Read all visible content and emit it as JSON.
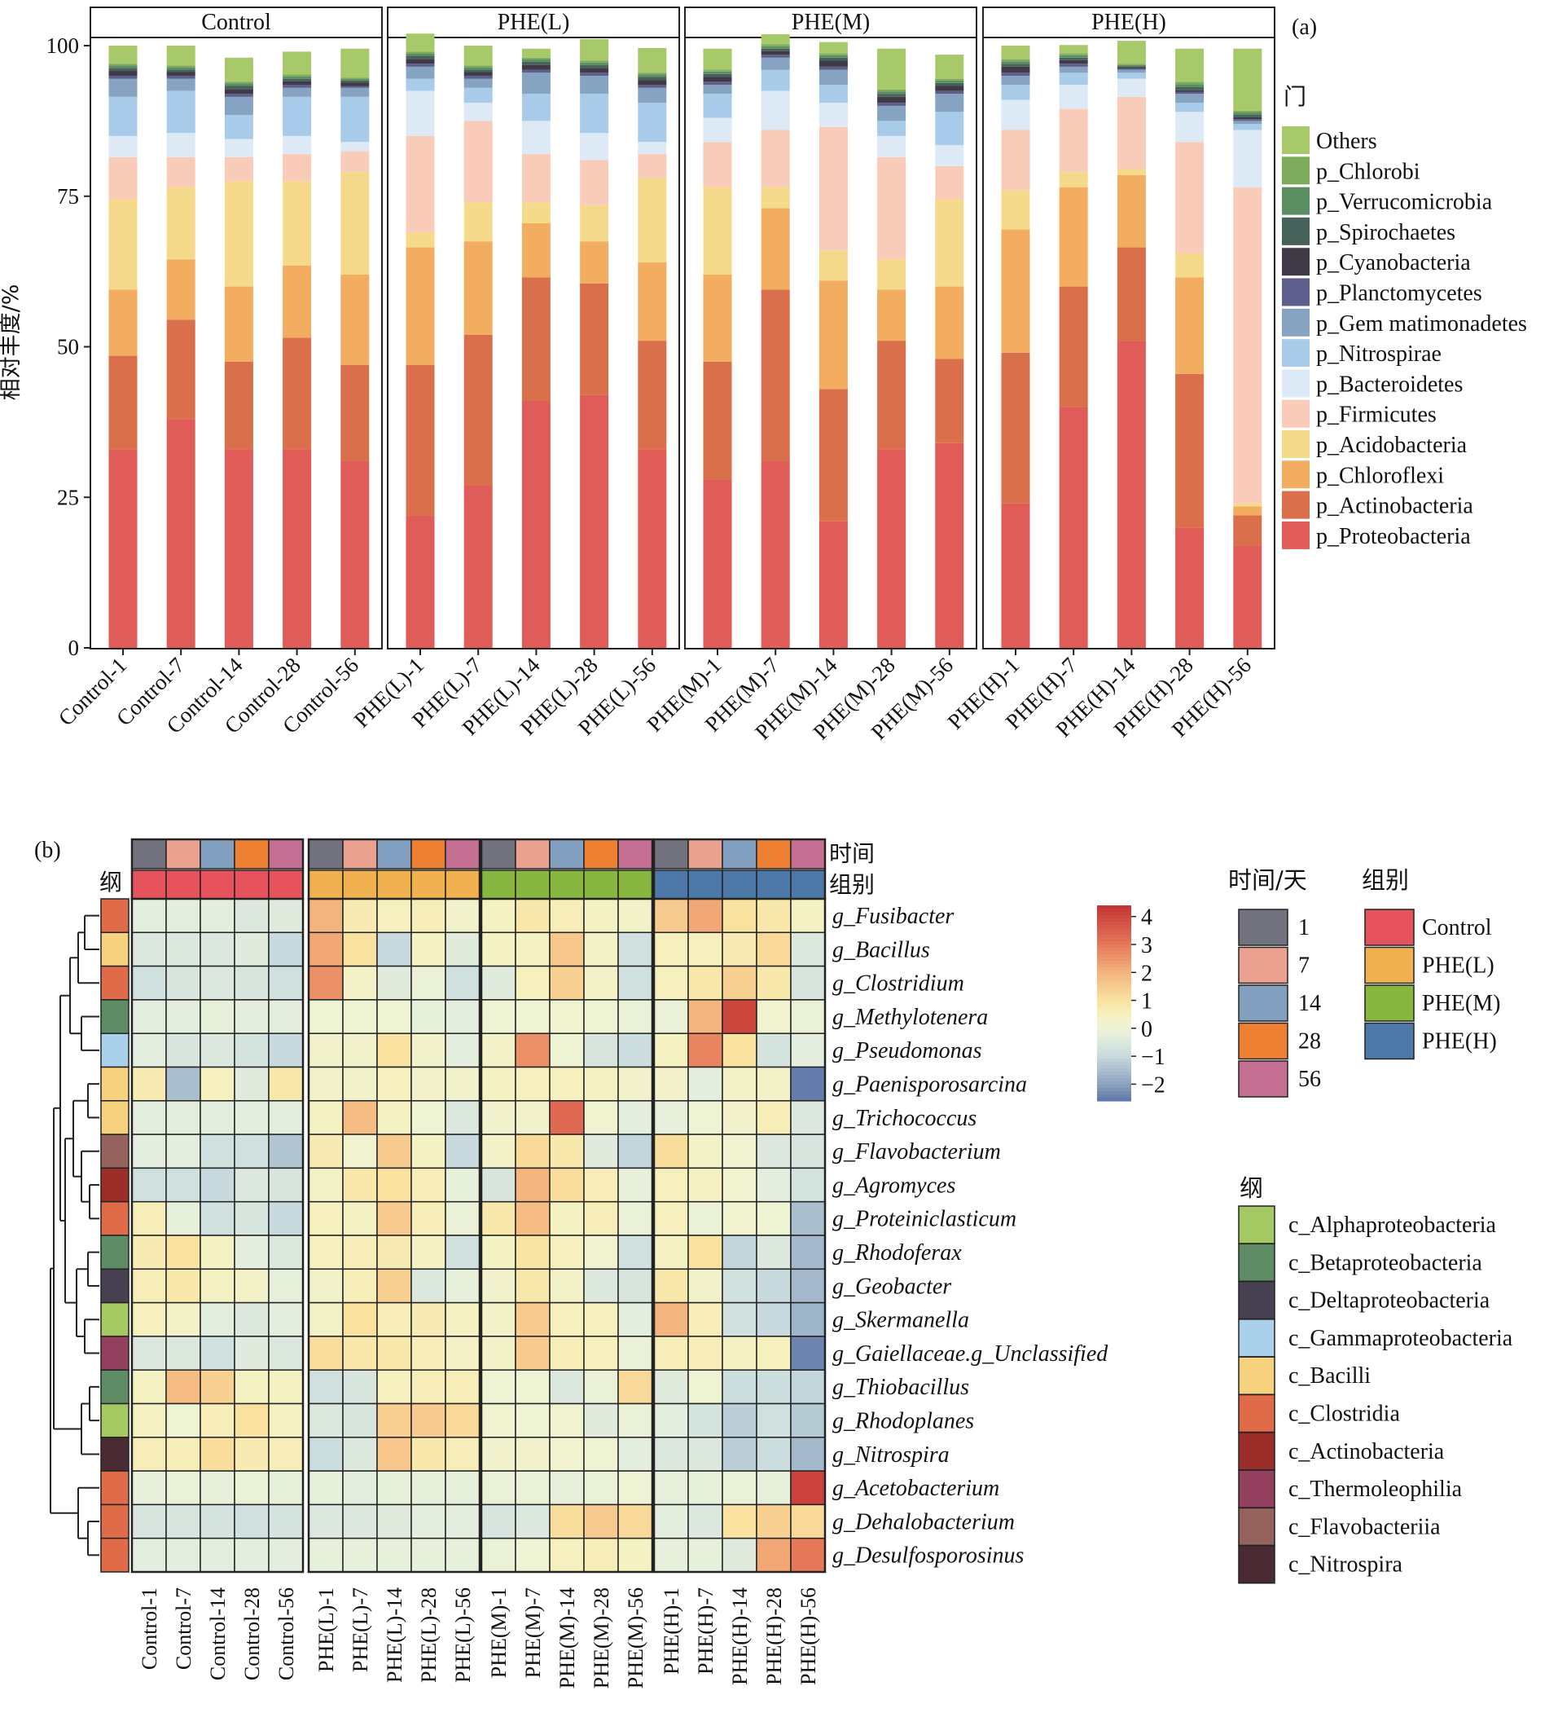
{
  "colors": {
    "phylum": {
      "Others": "#a8c969",
      "p_Chlorobi": "#7cab5b",
      "p_Verrucomicrobia": "#5b8f63",
      "p_Spirochaetes": "#46625a",
      "p_Cyanobacteria": "#403a46",
      "p_Planctomycetes": "#5d5e8b",
      "p_Gem matimonadetes": "#86a3c2",
      "p_Nitrospirae": "#a7cbe8",
      "p_Bacteroidetes": "#ddeaf6",
      "p_Firmicutes": "#f9ccb9",
      "p_Acidobacteria": "#f6da8b",
      "p_Chloroflexi": "#f3ad60",
      "p_Actinobacteria": "#da704b",
      "p_Proteobacteria": "#e05c58"
    },
    "time": {
      "1": "#72727e",
      "7": "#eba190",
      "14": "#829fbf",
      "28": "#ee8033",
      "56": "#c57093"
    },
    "group": {
      "Control": "#e6535c",
      "PHE(L)": "#f2b150",
      "PHE(M)": "#88b741",
      "PHE(H)": "#4e78a8"
    },
    "class": {
      "c_Alphaproteobacteria": "#a4c963",
      "c_Betaproteobacteria": "#5e8c65",
      "c_Deltaproteobacteria": "#474050",
      "c_Gammaproteobacteria": "#aad1ec",
      "c_Bacilli": "#f6d17e",
      "c_Clostridia": "#df6b49",
      "c_Actinobacteria": "#9c2e2a",
      "c_Thermoleophilia": "#93405e",
      "c_Flavobacteriia": "#96625e",
      "c_Nitrospira": "#4a2b33"
    }
  },
  "chart_data": [
    {
      "type": "bar",
      "panel_label": "(a)",
      "ylabel": "相对丰度/%",
      "ylim": [
        0,
        100
      ],
      "yticks": [
        "0",
        "25",
        "50",
        "75",
        "100"
      ],
      "facets": [
        "Control",
        "PHE(L)",
        "PHE(M)",
        "PHE(H)"
      ],
      "categories": [
        "Control-1",
        "Control-7",
        "Control-14",
        "Control-28",
        "Control-56",
        "PHE(L)-1",
        "PHE(L)-7",
        "PHE(L)-14",
        "PHE(L)-28",
        "PHE(L)-56",
        "PHE(M)-1",
        "PHE(M)-7",
        "PHE(M)-14",
        "PHE(M)-28",
        "PHE(M)-56",
        "PHE(H)-1",
        "PHE(H)-7",
        "PHE(H)-14",
        "PHE(H)-28",
        "PHE(H)-56"
      ],
      "legend_title": "门",
      "legend": [
        "Others",
        "p_Chlorobi",
        "p_Verrucomicrobia",
        "p_Spirochaetes",
        "p_Cyanobacteria",
        "p_Planctomycetes",
        "p_Gem matimonadetes",
        "p_Nitrospirae",
        "p_Bacteroidetes",
        "p_Firmicutes",
        "p_Acidobacteria",
        "p_Chloroflexi",
        "p_Actinobacteria",
        "p_Proteobacteria"
      ],
      "series": [
        {
          "name": "p_Proteobacteria",
          "values": [
            33,
            38,
            33,
            33,
            31,
            22,
            27,
            41,
            42,
            33,
            28,
            31,
            21,
            33,
            34,
            24,
            40,
            51,
            20,
            17
          ]
        },
        {
          "name": "p_Actinobacteria",
          "values": [
            15.5,
            16.5,
            14.5,
            18.5,
            16,
            25,
            25,
            20.5,
            18.5,
            18,
            19.5,
            28.5,
            22,
            18,
            14,
            25,
            20,
            15.5,
            25.5,
            5
          ]
        },
        {
          "name": "p_Chloroflexi",
          "values": [
            11,
            10,
            12.5,
            12,
            15,
            19.5,
            15.5,
            9,
            7,
            13,
            14.5,
            13.5,
            18,
            8.5,
            12,
            20.5,
            16.5,
            12,
            16,
            1.5
          ]
        },
        {
          "name": "p_Acidobacteria",
          "values": [
            15,
            12,
            17.5,
            14,
            17,
            2.5,
            6.5,
            3.5,
            6,
            14,
            14.5,
            3.5,
            5,
            5,
            14.5,
            6.5,
            2.5,
            1,
            4,
            0.5
          ]
        },
        {
          "name": "p_Firmicutes",
          "values": [
            7,
            5,
            4,
            4.5,
            3.5,
            16,
            13.5,
            8,
            7.5,
            4,
            7.5,
            9.5,
            20.5,
            17,
            5.5,
            10,
            10.5,
            12,
            18.5,
            52.5
          ]
        },
        {
          "name": "p_Bacteroidetes",
          "values": [
            3.5,
            4,
            3,
            3,
            1.5,
            7.5,
            3,
            5.5,
            4.5,
            2,
            4,
            6.5,
            4,
            3.5,
            3.5,
            5,
            4,
            3,
            5,
            9.5
          ]
        },
        {
          "name": "p_Nitrospirae",
          "values": [
            6.5,
            7,
            4,
            6.5,
            7.5,
            2,
            2.5,
            4.5,
            6.5,
            6.5,
            4,
            3.5,
            3,
            2.5,
            5.5,
            2.5,
            2,
            1,
            1.5,
            1
          ]
        },
        {
          "name": "p_Gem matimonadetes",
          "values": [
            3,
            2,
            3,
            1.5,
            1.5,
            2,
            1.5,
            3.5,
            3,
            2.5,
            1.5,
            2,
            2.5,
            2.5,
            3,
            1.5,
            1,
            0.5,
            1.5,
            0.5
          ]
        },
        {
          "name": "p_Planctomycetes",
          "values": [
            0.5,
            0.5,
            0.5,
            0.5,
            0.3,
            0.5,
            0.5,
            0.5,
            0.5,
            0.5,
            0.5,
            0.5,
            0.5,
            0.5,
            0.5,
            0.5,
            0.5,
            0.2,
            0.3,
            0.3
          ]
        },
        {
          "name": "p_Cyanobacteria",
          "values": [
            0.8,
            0.6,
            0.8,
            0.6,
            0.6,
            0.8,
            0.6,
            0.8,
            0.8,
            0.8,
            0.8,
            0.6,
            1,
            1,
            0.8,
            1,
            0.6,
            0.2,
            0.3,
            0.3
          ]
        },
        {
          "name": "p_Spirochaetes",
          "values": [
            0.5,
            0.4,
            0.5,
            0.4,
            0.3,
            0.5,
            0.4,
            0.5,
            0.5,
            0.5,
            0.5,
            0.4,
            0.5,
            0.5,
            0.5,
            0.5,
            0.4,
            0.2,
            0.5,
            0.4
          ]
        },
        {
          "name": "p_Verrucomicrobia",
          "values": [
            0.4,
            0.4,
            0.4,
            0.4,
            0.3,
            0.4,
            0.4,
            0.4,
            0.4,
            0.4,
            0.4,
            0.4,
            0.4,
            0.4,
            0.4,
            0.4,
            0.4,
            0.2,
            0.5,
            0.4
          ]
        },
        {
          "name": "p_Chlorobi",
          "values": [
            0.3,
            0.3,
            0.3,
            0.3,
            0.2,
            0.3,
            0.3,
            0.3,
            0.3,
            0.3,
            0.3,
            0.3,
            0.3,
            0.3,
            0.3,
            0.3,
            0.3,
            0.2,
            0.4,
            0.3
          ]
        },
        {
          "name": "Others",
          "values": [
            3,
            3.3,
            4,
            3.8,
            4.8,
            3,
            3.3,
            1.5,
            3.6,
            4.1,
            3.5,
            1.7,
            1.9,
            6.8,
            4,
            2.3,
            1.4,
            3.8,
            5.5,
            10.3
          ]
        }
      ]
    },
    {
      "type": "heatmap",
      "panel_label": "(b)",
      "columns": [
        "Control-1",
        "Control-7",
        "Control-14",
        "Control-28",
        "Control-56",
        "PHE(L)-1",
        "PHE(L)-7",
        "PHE(L)-14",
        "PHE(L)-28",
        "PHE(L)-56",
        "PHE(M)-1",
        "PHE(M)-7",
        "PHE(M)-14",
        "PHE(M)-28",
        "PHE(M)-56",
        "PHE(H)-1",
        "PHE(H)-7",
        "PHE(H)-14",
        "PHE(H)-28",
        "PHE(H)-56"
      ],
      "rows": [
        "g_Fusibacter",
        "g_Bacillus",
        "g_Clostridium",
        "g_Methylotenera",
        "g_Pseudomonas",
        "g_Paenisporosarcina",
        "g_Trichococcus",
        "g_Flavobacterium",
        "g_Agromyces",
        "g_Proteiniclasticum",
        "g_Rhodoferax",
        "g_Geobacter",
        "g_Skermanella",
        "g_Gaiellaceae.g_Unclassified",
        "g_Thiobacillus",
        "g_Rhodoplanes",
        "g_Nitrospira",
        "g_Acetobacterium",
        "g_Dehalobacterium",
        "g_Desulfosporosinus"
      ],
      "row_class": [
        "c_Clostridia",
        "c_Bacilli",
        "c_Clostridia",
        "c_Betaproteobacteria",
        "c_Gammaproteobacteria",
        "c_Bacilli",
        "c_Bacilli",
        "c_Flavobacteriia",
        "c_Actinobacteria",
        "c_Clostridia",
        "c_Betaproteobacteria",
        "c_Deltaproteobacteria",
        "c_Alphaproteobacteria",
        "c_Thermoleophilia",
        "c_Betaproteobacteria",
        "c_Alphaproteobacteria",
        "c_Nitrospira",
        "c_Clostridia",
        "c_Clostridia",
        "c_Clostridia"
      ],
      "time_row": [
        "1",
        "7",
        "14",
        "28",
        "56",
        "1",
        "7",
        "14",
        "28",
        "56",
        "1",
        "7",
        "14",
        "28",
        "56",
        "1",
        "7",
        "14",
        "28",
        "56"
      ],
      "group_row": [
        "Control",
        "Control",
        "Control",
        "Control",
        "Control",
        "PHE(L)",
        "PHE(L)",
        "PHE(L)",
        "PHE(L)",
        "PHE(L)",
        "PHE(M)",
        "PHE(M)",
        "PHE(M)",
        "PHE(M)",
        "PHE(M)",
        "PHE(H)",
        "PHE(H)",
        "PHE(H)",
        "PHE(H)",
        "PHE(H)"
      ],
      "values": [
        [
          -0.3,
          -0.3,
          -0.3,
          -0.5,
          -0.4,
          2,
          0.7,
          0.5,
          0.6,
          0.2,
          0.4,
          0.8,
          0.6,
          0.4,
          0.3,
          1.5,
          2.2,
          1,
          0.8,
          0.4
        ],
        [
          -0.5,
          -0.5,
          -0.5,
          -0.4,
          -1,
          2.2,
          1,
          -1,
          0.4,
          -0.4,
          0.4,
          0.4,
          1.6,
          0.3,
          -0.8,
          0.5,
          0.5,
          0.7,
          1.2,
          -0.5
        ],
        [
          -0.8,
          -0.6,
          -0.5,
          -0.6,
          -0.8,
          2.6,
          0.3,
          -0.4,
          -0.1,
          -0.8,
          -0.4,
          0.5,
          1.4,
          0.3,
          -0.8,
          0.5,
          0.8,
          1.4,
          0.8,
          -0.6
        ],
        [
          -0.3,
          -0.3,
          -0.2,
          -0.3,
          -0.3,
          0,
          0,
          0,
          -0.2,
          -0.3,
          0,
          0,
          0.1,
          0,
          -0.1,
          -0.1,
          2,
          4,
          0.1,
          -0.1
        ],
        [
          -0.3,
          -0.6,
          -0.5,
          -0.7,
          -1,
          0.2,
          0.2,
          1,
          0.2,
          -0.3,
          0.3,
          2.6,
          0,
          -0.6,
          -0.9,
          0.4,
          2.8,
          1,
          -0.7,
          -0.3
        ],
        [
          0.7,
          -1.5,
          0.5,
          -0.4,
          0.8,
          0.2,
          0.2,
          0.5,
          0.2,
          0.2,
          0.4,
          0.5,
          0.5,
          0.4,
          0.2,
          0.2,
          -0.3,
          0.3,
          0.3,
          -2.5
        ],
        [
          -0.3,
          -0.3,
          -0.3,
          -0.3,
          -0.3,
          0.4,
          1.8,
          0.4,
          0,
          -0.5,
          0.2,
          0.2,
          3.3,
          0.1,
          -0.3,
          -0.2,
          0,
          0.2,
          0.6,
          -0.5
        ],
        [
          -0.3,
          -0.3,
          -0.8,
          -0.8,
          -1.4,
          0.7,
          0.1,
          1.5,
          0.4,
          -1,
          0.3,
          1.2,
          0.8,
          -0.4,
          -1.1,
          1.1,
          0.3,
          0.1,
          -0.5,
          -0.6
        ],
        [
          -0.8,
          -0.8,
          -1,
          -0.5,
          -0.6,
          0.3,
          0.8,
          1,
          0.6,
          -0.2,
          -0.6,
          2,
          1.1,
          0.6,
          -0.2,
          0.5,
          0.4,
          0.1,
          -0.3,
          -0.7
        ],
        [
          0.6,
          -0.2,
          -0.8,
          -0.6,
          -1,
          0.5,
          0.4,
          1.5,
          0.6,
          -0.1,
          0.8,
          1.8,
          0.4,
          0.6,
          -0.1,
          0.5,
          -0.1,
          0.1,
          0,
          -1.5
        ],
        [
          0.7,
          1,
          0.4,
          -0.3,
          -0.5,
          0.5,
          0.6,
          0.7,
          0.4,
          -0.8,
          0.4,
          0.9,
          0.5,
          0.1,
          -0.8,
          0.4,
          1,
          -1.1,
          -0.5,
          -1.6
        ],
        [
          0.6,
          0.8,
          0.4,
          0.3,
          -0.2,
          0.2,
          0.6,
          1.4,
          -0.5,
          -0.2,
          0.2,
          0.8,
          0.3,
          -0.5,
          -0.6,
          0.8,
          0.2,
          -0.8,
          -1,
          -1.6
        ],
        [
          0.5,
          0.3,
          -0.3,
          -0.5,
          -0.3,
          0.3,
          1,
          0.6,
          0.7,
          0.4,
          0.3,
          1.5,
          0.5,
          0.5,
          -0.3,
          2,
          0.6,
          -0.8,
          -1,
          -1.7
        ],
        [
          -0.5,
          -0.5,
          -0.8,
          -0.4,
          -0.5,
          1.1,
          0.8,
          0.8,
          0.6,
          0.3,
          0.3,
          1.5,
          0.6,
          0.5,
          -0.1,
          0.6,
          0.6,
          0.4,
          0.5,
          -2.4
        ],
        [
          0.4,
          1.8,
          1.4,
          0.4,
          0.4,
          -0.8,
          -0.6,
          0.5,
          0.6,
          0.6,
          0,
          0,
          -0.5,
          -0.1,
          1.2,
          -0.4,
          0,
          -0.9,
          -0.9,
          -1.1
        ],
        [
          0.4,
          0,
          0.6,
          1,
          0.4,
          -0.5,
          -0.6,
          1.4,
          1.5,
          1.2,
          0.1,
          0,
          0.1,
          -0.4,
          -0.1,
          -0.3,
          -0.7,
          -1.2,
          -0.8,
          -1.3
        ],
        [
          0.6,
          0.6,
          1.1,
          0.7,
          0.6,
          -0.9,
          -0.5,
          1.6,
          0.8,
          0.6,
          0.2,
          0.2,
          0.1,
          0,
          -0.3,
          -0.5,
          -0.5,
          -1.2,
          -0.9,
          -1.6
        ],
        [
          -0.2,
          -0.1,
          -0.2,
          -0.1,
          -0.2,
          -0.2,
          -0.3,
          -0.2,
          -0.2,
          -0.2,
          -0.1,
          -0.1,
          -0.2,
          -0.1,
          0,
          -0.2,
          -0.2,
          -0.1,
          -0.2,
          4.1
        ],
        [
          -0.6,
          -0.6,
          -0.7,
          -0.8,
          -0.7,
          -0.5,
          -0.5,
          -0.4,
          -0.3,
          -0.3,
          -0.6,
          -0.5,
          1.1,
          1.5,
          1.2,
          -0.3,
          -0.5,
          1,
          1.4,
          1.2
        ],
        [
          -0.3,
          -0.3,
          -0.3,
          -0.3,
          -0.3,
          -0.2,
          -0.2,
          -0.2,
          -0.2,
          -0.2,
          -0.1,
          0,
          0.5,
          0.6,
          0.4,
          -0.2,
          -0.2,
          -0.4,
          2.2,
          3
        ]
      ],
      "colorbar": {
        "ticks": [
          "4",
          "3",
          "2",
          "1",
          "0",
          "−1",
          "−2"
        ],
        "range": [
          -2.6,
          4.4
        ]
      },
      "labels": {
        "time": "时间",
        "group": "组别",
        "class": "纲"
      },
      "legend_time": {
        "title": "时间/天",
        "items": [
          "1",
          "7",
          "14",
          "28",
          "56"
        ]
      },
      "legend_group": {
        "title": "组别",
        "items": [
          "Control",
          "PHE(L)",
          "PHE(M)",
          "PHE(H)"
        ]
      },
      "legend_class": {
        "title": "纲",
        "items": [
          "c_Alphaproteobacteria",
          "c_Betaproteobacteria",
          "c_Deltaproteobacteria",
          "c_Gammaproteobacteria",
          "c_Bacilli",
          "c_Clostridia",
          "c_Actinobacteria",
          "c_Thermoleophilia",
          "c_Flavobacteriia",
          "c_Nitrospira"
        ]
      }
    }
  ]
}
